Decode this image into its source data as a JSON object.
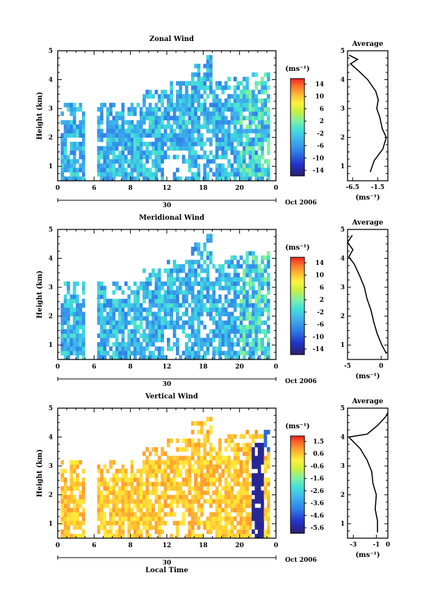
{
  "figure": {
    "x_tick_labels": [
      "0",
      "6",
      "8",
      "12",
      "18",
      "20",
      "0"
    ],
    "date_label": "30",
    "month_label": "Oct 2006",
    "xlabel": "Local Time",
    "colorbar_unit": "(ms⁻¹)",
    "average_title": "Average"
  },
  "chart_data": [
    {
      "type": "heatmap",
      "title": "Zonal Wind",
      "ylabel": "Height (km)",
      "yticks": [
        "1",
        "2",
        "3",
        "4",
        "5"
      ],
      "ylim": [
        0.5,
        5
      ],
      "colorbar_ticks": [
        "14",
        "10",
        "6",
        "2",
        "-2",
        "-6",
        "-10",
        "-14"
      ],
      "colorbar_range": [
        -16,
        16
      ],
      "dominant_range": [
        -8,
        0
      ],
      "average": {
        "title": "Average",
        "xlabel": "(ms⁻¹)",
        "xticks": [
          "-6.5",
          "-1.5"
        ],
        "xlim": [
          -7.5,
          0.5
        ],
        "profile": [
          {
            "height": 0.8,
            "value": -3.0
          },
          {
            "height": 1.2,
            "value": -2.2
          },
          {
            "height": 1.6,
            "value": -0.5
          },
          {
            "height": 2.0,
            "value": 0.2
          },
          {
            "height": 2.3,
            "value": -0.6
          },
          {
            "height": 2.7,
            "value": -1.1
          },
          {
            "height": 3.0,
            "value": -1.7
          },
          {
            "height": 3.3,
            "value": -1.4
          },
          {
            "height": 3.6,
            "value": -1.9
          },
          {
            "height": 4.0,
            "value": -3.5
          },
          {
            "height": 4.3,
            "value": -5.3
          },
          {
            "height": 4.55,
            "value": -6.9
          },
          {
            "height": 4.7,
            "value": -5.5
          },
          {
            "height": 4.85,
            "value": -7.2
          }
        ]
      }
    },
    {
      "type": "heatmap",
      "title": "Meridional Wind",
      "ylabel": "Height (km)",
      "yticks": [
        "1",
        "2",
        "3",
        "4",
        "5"
      ],
      "ylim": [
        0.5,
        5
      ],
      "colorbar_ticks": [
        "14",
        "10",
        "6",
        "2",
        "-2",
        "-6",
        "-10",
        "-14"
      ],
      "colorbar_range": [
        -16,
        16
      ],
      "dominant_range": [
        -8,
        0
      ],
      "average": {
        "title": "Average",
        "xlabel": "(ms⁻¹)",
        "xticks": [
          "-5",
          "0"
        ],
        "xlim": [
          -5,
          1
        ],
        "profile": [
          {
            "height": 0.7,
            "value": 0.8
          },
          {
            "height": 1.0,
            "value": 0.1
          },
          {
            "height": 1.4,
            "value": -0.6
          },
          {
            "height": 1.8,
            "value": -1.1
          },
          {
            "height": 2.2,
            "value": -1.5
          },
          {
            "height": 2.6,
            "value": -2.1
          },
          {
            "height": 3.0,
            "value": -2.5
          },
          {
            "height": 3.4,
            "value": -3.2
          },
          {
            "height": 3.8,
            "value": -4.0
          },
          {
            "height": 4.05,
            "value": -4.8
          },
          {
            "height": 4.3,
            "value": -4.2
          },
          {
            "height": 4.55,
            "value": -5.0
          },
          {
            "height": 4.8,
            "value": -4.3
          }
        ]
      }
    },
    {
      "type": "heatmap",
      "title": "Vertical Wind",
      "ylabel": "Height (km)",
      "yticks": [
        "1",
        "2",
        "3",
        "4",
        "5"
      ],
      "ylim": [
        0.5,
        5
      ],
      "colorbar_ticks": [
        "1.5",
        "0.6",
        "-0.6",
        "-1.6",
        "-2.6",
        "-3.6",
        "-4.6",
        "-5.6"
      ],
      "colorbar_range": [
        -6,
        2
      ],
      "dominant_range": [
        0,
        1
      ],
      "average": {
        "title": "Average",
        "xlabel": "(ms⁻¹)",
        "xticks": [
          "-3",
          "-1",
          "0"
        ],
        "xlim": [
          -3.5,
          0
        ],
        "profile": [
          {
            "height": 0.7,
            "value": -0.9
          },
          {
            "height": 1.1,
            "value": -0.9
          },
          {
            "height": 1.5,
            "value": -1.1
          },
          {
            "height": 2.0,
            "value": -1.0
          },
          {
            "height": 2.4,
            "value": -1.3
          },
          {
            "height": 2.8,
            "value": -1.4
          },
          {
            "height": 3.2,
            "value": -1.8
          },
          {
            "height": 3.6,
            "value": -2.4
          },
          {
            "height": 4.0,
            "value": -3.4
          },
          {
            "height": 4.1,
            "value": -1.8
          },
          {
            "height": 4.4,
            "value": -0.9
          },
          {
            "height": 4.7,
            "value": -0.2
          },
          {
            "height": 4.85,
            "value": 0.0
          }
        ]
      }
    }
  ]
}
